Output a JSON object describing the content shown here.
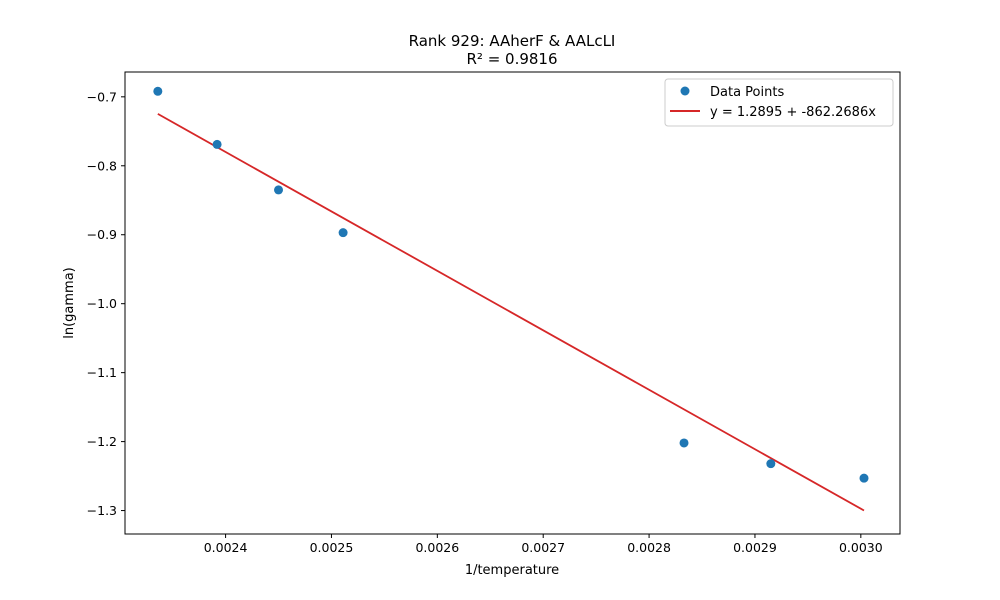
{
  "chart_data": {
    "type": "scatter",
    "title": "Rank 929: AAherF & AALcLI",
    "subtitle": "R² = 0.9816",
    "xlabel": "1/temperature",
    "ylabel": "ln(gamma)",
    "xlim": [
      0.002305,
      0.003037
    ],
    "ylim": [
      -1.334,
      -0.664
    ],
    "x_ticks": [
      0.0024,
      0.0025,
      0.0026,
      0.0027,
      0.0028,
      0.0029,
      0.003
    ],
    "x_tick_labels": [
      "0.0024",
      "0.0025",
      "0.0026",
      "0.0027",
      "0.0028",
      "0.0029",
      "0.0030"
    ],
    "y_ticks": [
      -0.7,
      -0.8,
      -0.9,
      -1.0,
      -1.1,
      -1.2,
      -1.3
    ],
    "y_tick_labels": [
      "−0.7",
      "−0.8",
      "−0.9",
      "−1.0",
      "−1.1",
      "−1.2",
      "−1.3"
    ],
    "grid": false,
    "legend_position": "top-right",
    "series": [
      {
        "name": "Data Points",
        "kind": "scatter",
        "color": "#1f77b4",
        "points": [
          {
            "x": 0.002336,
            "y": -0.692
          },
          {
            "x": 0.002392,
            "y": -0.769
          },
          {
            "x": 0.00245,
            "y": -0.835
          },
          {
            "x": 0.002511,
            "y": -0.897
          },
          {
            "x": 0.002833,
            "y": -1.202
          },
          {
            "x": 0.002915,
            "y": -1.232
          },
          {
            "x": 0.003003,
            "y": -1.253
          }
        ]
      },
      {
        "name": "y = 1.2895 + -862.2686x",
        "kind": "line",
        "color": "#d62728",
        "intercept": 1.2895,
        "slope": -862.2686,
        "x_range": [
          0.002336,
          0.003003
        ]
      }
    ]
  }
}
